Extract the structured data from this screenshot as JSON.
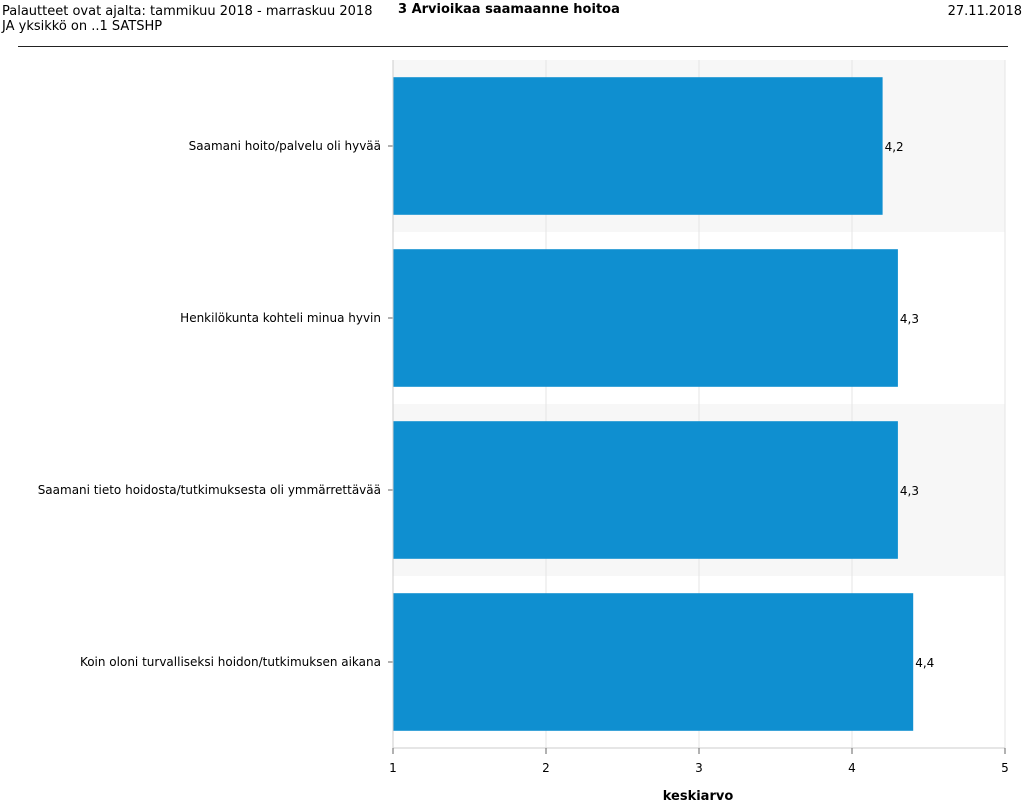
{
  "header": {
    "period_line": "Palautteet ovat ajalta: tammikuu 2018 - marraskuu 2018",
    "unit_line": "JA yksikkö on ..1 SATSHP",
    "title": "3 Arvioikaa saamaanne hoitoa",
    "date": "27.11.2018"
  },
  "chart_data": {
    "type": "bar",
    "orientation": "horizontal",
    "categories": [
      "Saamani hoito/palvelu oli hyvää",
      "Henkilökunta kohteli minua hyvin",
      "Saamani tieto hoidosta/tutkimuksesta oli ymmärrettävää",
      "Koin oloni turvalliseksi hoidon/tutkimuksen aikana"
    ],
    "values": [
      4.2,
      4.3,
      4.3,
      4.4
    ],
    "value_labels": [
      "4,2",
      "4,3",
      "4,3",
      "4,4"
    ],
    "xlabel": "keskiarvo",
    "xlim": [
      1,
      5
    ],
    "xticks": [
      "1",
      "2",
      "3",
      "4",
      "5"
    ],
    "grid": true,
    "bar_color": "#0f8fd0",
    "band_color": "#f7f7f7"
  }
}
